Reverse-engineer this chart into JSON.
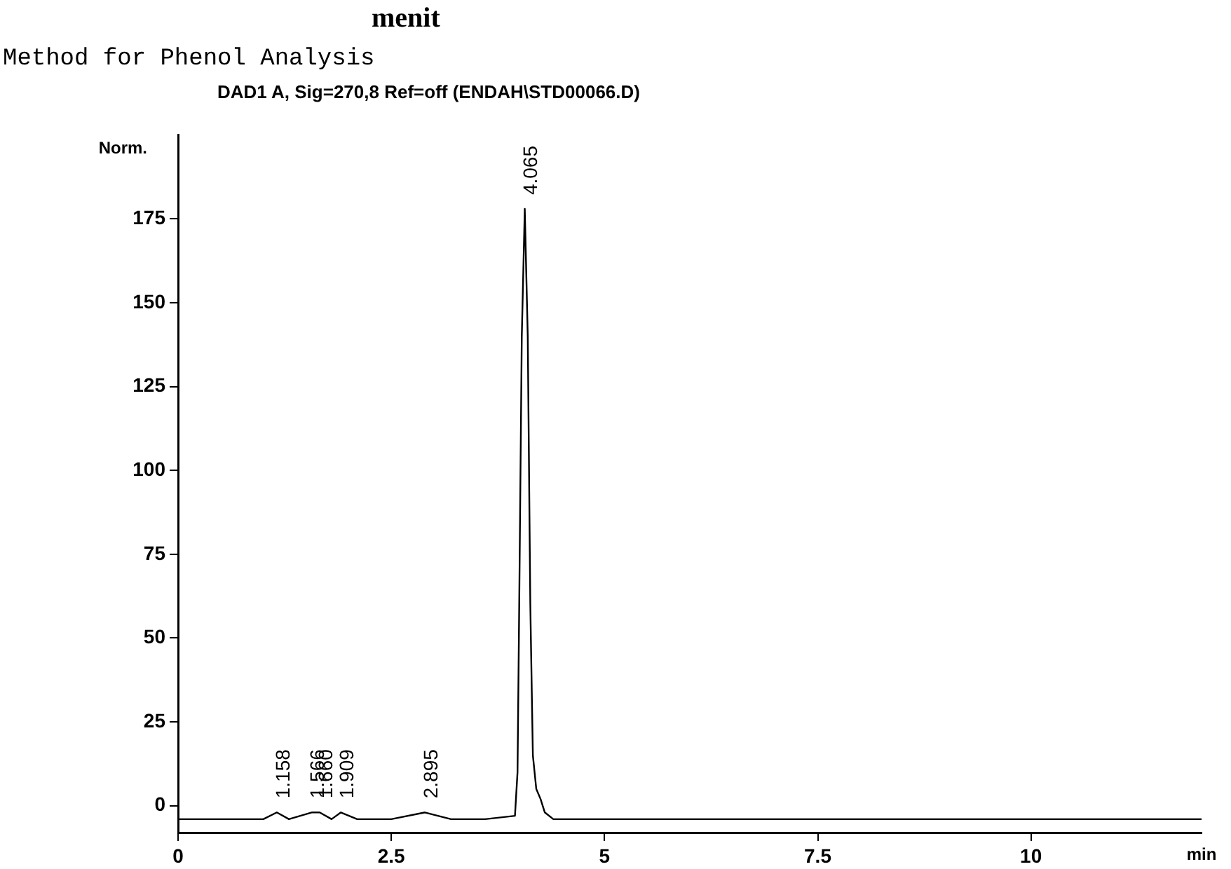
{
  "chart_data": {
    "type": "line",
    "title": "Method for Phenol Analysis",
    "subtitle": "DAD1 A, Sig=270,8 Ref=off (ENDAH\\STD00066.D)",
    "xlabel": "min",
    "ylabel": "Norm.",
    "annotations": [
      "menit",
      {
        "text": "1.158",
        "x": 1.158,
        "y": -2
      },
      {
        "text": "1.566",
        "x": 1.566,
        "y": -2
      },
      {
        "text": "1.660",
        "x": 1.66,
        "y": -2
      },
      {
        "text": "1.909",
        "x": 1.909,
        "y": -2
      },
      {
        "text": "2.895",
        "x": 2.895,
        "y": -2
      },
      {
        "text": "4.065",
        "x": 4.065,
        "y": 178
      }
    ],
    "series": [
      {
        "color": "#000000",
        "x": [
          0,
          0.5,
          1.0,
          1.158,
          1.3,
          1.566,
          1.66,
          1.8,
          1.909,
          2.1,
          2.5,
          2.895,
          3.2,
          3.6,
          3.95,
          3.98,
          4.0,
          4.03,
          4.065,
          4.1,
          4.13,
          4.16,
          4.2,
          4.25,
          4.3,
          4.4,
          5,
          7.5,
          10,
          12
        ],
        "values": [
          -4,
          -4,
          -4,
          -2,
          -4,
          -2,
          -2,
          -4,
          -2,
          -4,
          -4,
          -2,
          -4,
          -4,
          -3,
          10,
          60,
          140,
          178,
          140,
          60,
          15,
          5,
          2,
          -2,
          -4,
          -4,
          -4,
          -4,
          -4
        ]
      }
    ],
    "xlim": [
      0,
      12
    ],
    "xticks": [
      0,
      2.5,
      5,
      7.5,
      10
    ],
    "ylim": [
      -8,
      200
    ],
    "yticks": [
      0,
      25,
      50,
      75,
      100,
      125,
      150,
      175
    ],
    "grid": false,
    "legend": false,
    "marker": "none",
    "line_style": "solid"
  }
}
